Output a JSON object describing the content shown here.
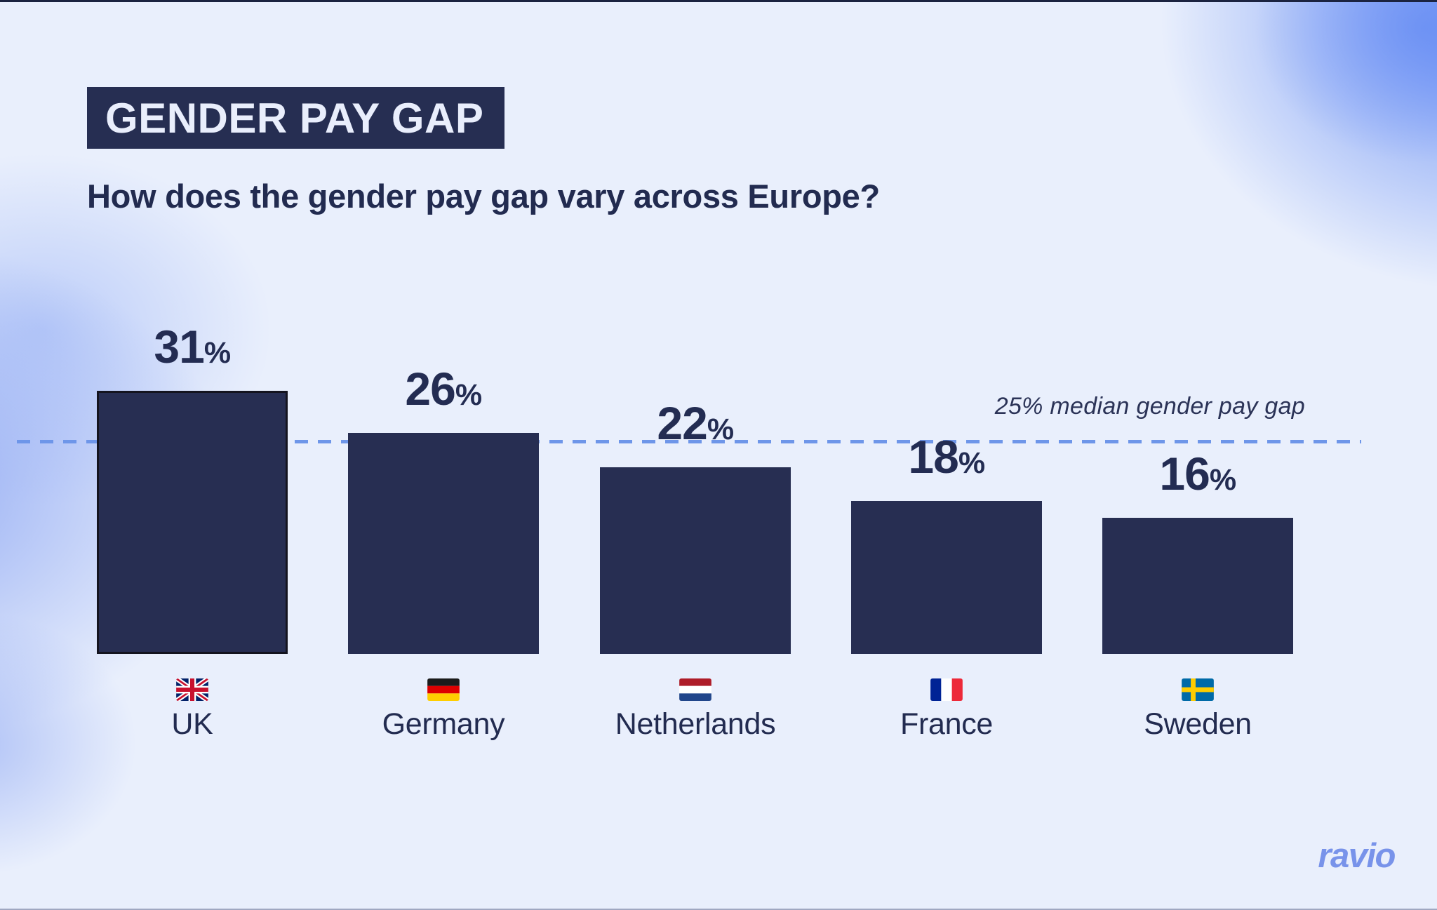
{
  "page": {
    "brand_logo": "ravio"
  },
  "chart_data": {
    "type": "bar",
    "title": "GENDER PAY GAP",
    "subtitle": "How does the gender pay gap vary across Europe?",
    "categories": [
      "UK",
      "Germany",
      "Netherlands",
      "France",
      "Sweden"
    ],
    "values": [
      31,
      26,
      22,
      18,
      16
    ],
    "unit": "%",
    "value_labels": [
      "31%",
      "26%",
      "22%",
      "18%",
      "16%"
    ],
    "flags": [
      "uk",
      "germany",
      "netherlands",
      "france",
      "sweden"
    ],
    "reference_line": {
      "value": 25,
      "label": "25% median gender pay gap"
    },
    "ylim": [
      0,
      31
    ],
    "grid": false,
    "legend": false,
    "bar_color": "#272e52",
    "emphasized_bar": "UK",
    "colors": {
      "background": "#e9effc",
      "accent_navy": "#262e52",
      "badge_text": "#e9eefc",
      "dashed_line": "#6e96e9",
      "logo_blue": "#7893ea"
    }
  }
}
